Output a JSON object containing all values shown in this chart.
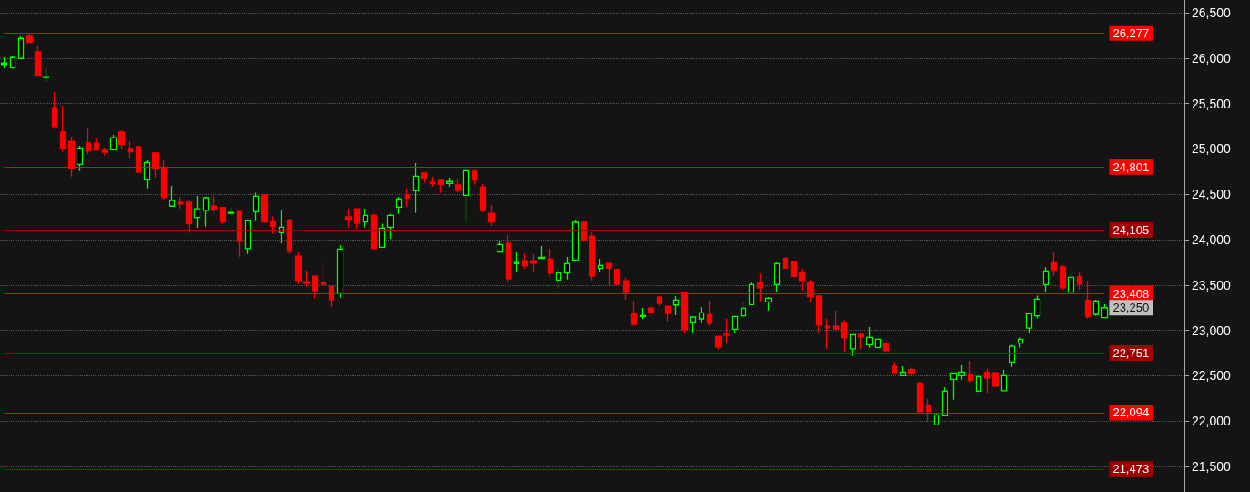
{
  "chart_data": {
    "type": "candlestick",
    "categories": [
      null,
      null,
      null,
      null,
      null,
      null,
      null,
      null,
      null,
      null,
      null,
      null,
      null,
      null,
      null,
      null,
      null,
      null,
      null,
      null,
      null,
      null,
      null,
      null,
      null,
      null,
      null,
      null,
      null,
      null,
      null,
      null,
      null,
      null,
      null,
      null,
      null,
      null,
      null,
      null,
      null,
      null,
      null,
      null,
      null,
      null,
      null,
      null,
      null,
      null,
      null,
      null,
      null,
      null,
      null,
      null,
      null,
      null,
      null,
      null,
      null,
      null,
      null,
      null,
      null,
      null,
      null,
      null,
      null,
      null,
      null,
      null,
      null,
      null,
      null,
      null,
      null,
      null,
      null,
      null,
      null,
      null,
      null,
      null,
      null,
      null,
      null,
      null,
      null,
      null,
      null,
      null,
      null,
      null,
      null,
      null,
      null,
      null,
      null,
      null,
      null,
      null,
      null,
      null,
      null,
      null,
      null,
      null,
      null,
      null,
      null,
      null,
      null,
      null,
      null,
      null,
      null,
      null,
      null,
      null,
      null,
      null,
      null,
      null,
      null,
      null,
      null,
      null,
      null,
      null,
      null,
      null,
      null,
      null,
      null,
      null,
      null,
      null,
      null,
      null,
      null
    ],
    "ohlc": [
      [
        25930,
        26008,
        25888,
        25945
      ],
      [
        25895,
        26021,
        25881,
        26005
      ],
      [
        25995,
        26246,
        25995,
        26216
      ],
      [
        26249,
        26272,
        26172,
        26172
      ],
      [
        26068,
        26129,
        25804,
        25810
      ],
      [
        25785,
        25898,
        25737,
        25795
      ],
      [
        25456,
        25627,
        25242,
        25245
      ],
      [
        25185,
        25476,
        24967,
        25004
      ],
      [
        25084,
        25135,
        24696,
        24786
      ],
      [
        24830,
        25034,
        24756,
        25011
      ],
      [
        25064,
        25225,
        24944,
        24977
      ],
      [
        25064,
        25125,
        24987,
        24987
      ],
      [
        24984,
        25014,
        24927,
        24962
      ],
      [
        24991,
        25155,
        24991,
        25122
      ],
      [
        25185,
        25205,
        25001,
        25048
      ],
      [
        25004,
        25084,
        24900,
        24967
      ],
      [
        25024,
        25024,
        24733,
        24743
      ],
      [
        24660,
        24874,
        24565,
        24850
      ],
      [
        24954,
        24964,
        24686,
        24776
      ],
      [
        24800,
        24874,
        24442,
        24465
      ],
      [
        24369,
        24593,
        24369,
        24432
      ],
      [
        24414,
        24472,
        24344,
        24394
      ],
      [
        24414,
        24432,
        24073,
        24174
      ],
      [
        24244,
        24482,
        24130,
        24341
      ],
      [
        24323,
        24472,
        24143,
        24462
      ],
      [
        24371,
        24482,
        24304,
        24334
      ],
      [
        24354,
        24358,
        24173,
        24196
      ],
      [
        24290,
        24354,
        24271,
        24300
      ],
      [
        24311,
        24311,
        23812,
        23980
      ],
      [
        23902,
        24224,
        23842,
        24208
      ],
      [
        24307,
        24518,
        24203,
        24478
      ],
      [
        24492,
        24500,
        24180,
        24194
      ],
      [
        24198,
        24258,
        24063,
        24144
      ],
      [
        24077,
        24318,
        23959,
        24137
      ],
      [
        24218,
        24231,
        23842,
        23872
      ],
      [
        23819,
        23860,
        23511,
        23551
      ],
      [
        23538,
        23659,
        23481,
        23518
      ],
      [
        23598,
        23598,
        23351,
        23441
      ],
      [
        23525,
        23769,
        23461,
        23508
      ],
      [
        23485,
        23485,
        23260,
        23340
      ],
      [
        23404,
        23940,
        23360,
        23896
      ],
      [
        24251,
        24341,
        24134,
        24214
      ],
      [
        24341,
        24341,
        24124,
        24181
      ],
      [
        24194,
        24341,
        24137,
        24268
      ],
      [
        24271,
        24331,
        23869,
        23902
      ],
      [
        23916,
        24177,
        23916,
        24127
      ],
      [
        24137,
        24284,
        24010,
        24268
      ],
      [
        24358,
        24472,
        24284,
        24449
      ],
      [
        24492,
        24565,
        24358,
        24455
      ],
      [
        24539,
        24843,
        24294,
        24700
      ],
      [
        24733,
        24733,
        24626,
        24666
      ],
      [
        24633,
        24693,
        24583,
        24616
      ],
      [
        24653,
        24653,
        24515,
        24606
      ],
      [
        24619,
        24683,
        24586,
        24640
      ],
      [
        24603,
        24663,
        24522,
        24542
      ],
      [
        24489,
        24783,
        24184,
        24760
      ],
      [
        24753,
        24773,
        24606,
        24656
      ],
      [
        24582,
        24612,
        24301,
        24321
      ],
      [
        24291,
        24382,
        24153,
        24194
      ],
      [
        23863,
        23987,
        23863,
        23947
      ],
      [
        23960,
        24050,
        23528,
        23571
      ],
      [
        23736,
        23860,
        23642,
        23749
      ],
      [
        23769,
        23849,
        23679,
        23712
      ],
      [
        23769,
        23839,
        23652,
        23742
      ],
      [
        23793,
        23930,
        23793,
        23806
      ],
      [
        23789,
        23900,
        23602,
        23632
      ],
      [
        23555,
        23679,
        23461,
        23635
      ],
      [
        23632,
        23809,
        23561,
        23736
      ],
      [
        23776,
        24211,
        23756,
        24191
      ],
      [
        24191,
        24191,
        23973,
        23993
      ],
      [
        24040,
        24080,
        23551,
        23598
      ],
      [
        23682,
        23789,
        23639,
        23716
      ],
      [
        23739,
        23739,
        23491,
        23686
      ],
      [
        23669,
        23686,
        23498,
        23508
      ],
      [
        23548,
        23578,
        23337,
        23418
      ],
      [
        23187,
        23327,
        23049,
        23066
      ],
      [
        23154,
        23247,
        23127,
        23164
      ],
      [
        23247,
        23277,
        23137,
        23197
      ],
      [
        23367,
        23378,
        23270,
        23297
      ],
      [
        23267,
        23267,
        23100,
        23187
      ],
      [
        23280,
        23378,
        23167,
        23334
      ],
      [
        23418,
        23418,
        22969,
        23010
      ],
      [
        23093,
        23147,
        22976,
        23147
      ],
      [
        23127,
        23254,
        23093,
        23194
      ],
      [
        23174,
        23327,
        23053,
        23079
      ],
      [
        22936,
        22936,
        22788,
        22818
      ],
      [
        22956,
        23127,
        22855,
        22949
      ],
      [
        23013,
        23154,
        22969,
        23154
      ],
      [
        23160,
        23307,
        23137,
        23244
      ],
      [
        23284,
        23525,
        23284,
        23505
      ],
      [
        23525,
        23625,
        23320,
        23471
      ],
      [
        23314,
        23367,
        23220,
        23354
      ],
      [
        23505,
        23749,
        23421,
        23736
      ],
      [
        23796,
        23800,
        23686,
        23686
      ],
      [
        23759,
        23759,
        23555,
        23595
      ],
      [
        23646,
        23676,
        23441,
        23551
      ],
      [
        23535,
        23555,
        23310,
        23371
      ],
      [
        23378,
        23378,
        22976,
        23059
      ],
      [
        23046,
        23127,
        22798,
        23029
      ],
      [
        23046,
        23217,
        22992,
        23019
      ],
      [
        23087,
        23113,
        22768,
        22920
      ],
      [
        22798,
        22953,
        22718,
        22953
      ],
      [
        22956,
        22973,
        22795,
        22929
      ],
      [
        22842,
        23036,
        22808,
        22922
      ],
      [
        22812,
        22902,
        22812,
        22902
      ],
      [
        22855,
        22906,
        22718,
        22778
      ],
      [
        22605,
        22655,
        22517,
        22537
      ],
      [
        22501,
        22605,
        22501,
        22541
      ],
      [
        22568,
        22591,
        22507,
        22527
      ],
      [
        22421,
        22431,
        22096,
        22106
      ],
      [
        22179,
        22243,
        21999,
        22106
      ],
      [
        21959,
        22082,
        21959,
        22069
      ],
      [
        22059,
        22374,
        22059,
        22330
      ],
      [
        22461,
        22531,
        22237,
        22531
      ],
      [
        22501,
        22615,
        22457,
        22541
      ],
      [
        22511,
        22665,
        22427,
        22451
      ],
      [
        22330,
        22504,
        22307,
        22491
      ],
      [
        22541,
        22581,
        22310,
        22474
      ],
      [
        22534,
        22544,
        22374,
        22387
      ],
      [
        22336,
        22564,
        22336,
        22501
      ],
      [
        22651,
        22842,
        22598,
        22825
      ],
      [
        22859,
        22922,
        22812,
        22902
      ],
      [
        23026,
        23194,
        22969,
        23184
      ],
      [
        23160,
        23384,
        23133,
        23344
      ],
      [
        23505,
        23696,
        23428,
        23656
      ],
      [
        23746,
        23860,
        23602,
        23662
      ],
      [
        23699,
        23719,
        23451,
        23471
      ],
      [
        23421,
        23625,
        23408,
        23585
      ],
      [
        23595,
        23639,
        23451,
        23511
      ],
      [
        23334,
        23545,
        23127,
        23150
      ],
      [
        23177,
        23337,
        23160,
        23324
      ],
      [
        23140,
        23287,
        23140,
        23250
      ],
      null,
      null,
      null,
      null,
      null,
      null,
      null,
      null,
      null
    ],
    "ylim": [
      21220,
      26640
    ],
    "yticks": [
      {
        "value": 21500,
        "label": "21,500"
      },
      {
        "value": 22000,
        "label": "22,000"
      },
      {
        "value": 22500,
        "label": "22,500"
      },
      {
        "value": 23000,
        "label": "23,000"
      },
      {
        "value": 23500,
        "label": "23,500"
      },
      {
        "value": 24000,
        "label": "24,000"
      },
      {
        "value": 24500,
        "label": "24,500"
      },
      {
        "value": 25000,
        "label": "25,000"
      },
      {
        "value": 25500,
        "label": "25,500"
      },
      {
        "value": 26000,
        "label": "26,000"
      },
      {
        "value": 26500,
        "label": "26,500"
      }
    ],
    "grid": "y",
    "tick_labels": "y",
    "ref_lines": [
      {
        "axis": "y",
        "value": 26277,
        "label": "26,277",
        "color": "#ff0000"
      },
      {
        "axis": "y",
        "value": 24801,
        "label": "24,801",
        "color": "#ff0000"
      },
      {
        "axis": "y",
        "value": 24105,
        "label": "24,105",
        "color": "#a00000"
      },
      {
        "axis": "y",
        "value": 23408,
        "label": "23,408",
        "color": "#ff0000"
      },
      {
        "axis": "y",
        "value": 22751,
        "label": "22,751",
        "color": "#a00000"
      },
      {
        "axis": "y",
        "value": 22094,
        "label": "22,094",
        "color": "#ff0000"
      },
      {
        "axis": "y",
        "value": 21473,
        "label": "21,473",
        "color": "#a00000"
      }
    ],
    "annotations": [
      "23,250"
    ]
  }
}
